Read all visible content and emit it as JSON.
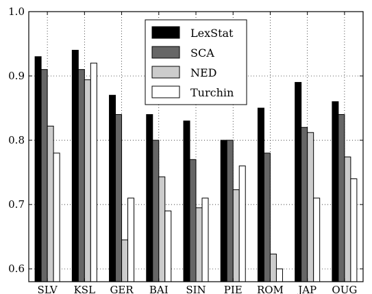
{
  "chart_data": {
    "type": "bar",
    "categories": [
      "SLV",
      "KSL",
      "GER",
      "BAI",
      "SIN",
      "PIE",
      "ROM",
      "JAP",
      "OUG"
    ],
    "series": [
      {
        "name": "LexStat",
        "color": "#000000",
        "values": [
          0.93,
          0.94,
          0.87,
          0.84,
          0.83,
          0.8,
          0.85,
          0.89,
          0.86
        ]
      },
      {
        "name": "SCA",
        "color": "#666666",
        "values": [
          0.91,
          0.91,
          0.84,
          0.8,
          0.77,
          0.8,
          0.78,
          0.82,
          0.84
        ]
      },
      {
        "name": "NED",
        "color": "#cccccc",
        "values": [
          0.822,
          0.894,
          0.645,
          0.743,
          0.695,
          0.723,
          0.623,
          0.812,
          0.774
        ]
      },
      {
        "name": "Turchin",
        "color": "#ffffff",
        "values": [
          0.78,
          0.92,
          0.71,
          0.69,
          0.71,
          0.76,
          0.6,
          0.71,
          0.74
        ]
      }
    ],
    "ylim": [
      0.58,
      1.0
    ],
    "yticks": [
      "0.6",
      "0.7",
      "0.8",
      "0.9",
      "1.0"
    ],
    "ytick_values": [
      0.6,
      0.7,
      0.8,
      0.9,
      1.0
    ],
    "grid": true,
    "grid_style": "dotted",
    "legend_position": "top-center",
    "title": "",
    "xlabel": "",
    "ylabel": ""
  }
}
